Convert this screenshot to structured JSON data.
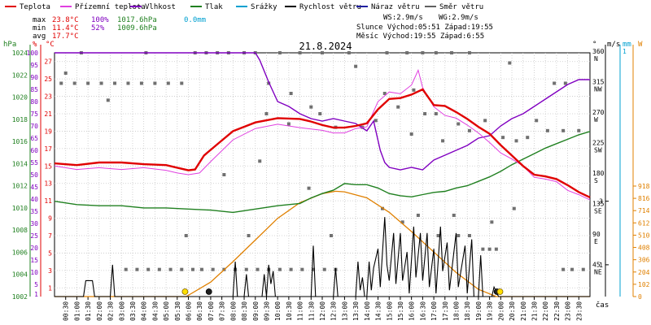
{
  "title": "21.8.2024",
  "legend": [
    {
      "label": "Teplota",
      "color": "#e00000"
    },
    {
      "label": "Přízemní teplota",
      "color": "#e040e0"
    },
    {
      "label": "Vlhkost",
      "color": "#8000c0"
    },
    {
      "label": "Tlak",
      "color": "#208020"
    },
    {
      "label": "Srážky",
      "color": "#00a0d0"
    },
    {
      "label": "Rychlost větru",
      "color": "#000000"
    },
    {
      "label": "Náraz větru",
      "color": "#2020a0"
    },
    {
      "label": "Směr větru",
      "color": "#606060"
    }
  ],
  "stats": {
    "max_label": "max",
    "max_temp": "23.8°C",
    "max_hum": "100%",
    "max_press": "1017.6hPa",
    "rain": "0.0mm",
    "min_label": "min",
    "min_temp": "11.4°C",
    "min_hum": "52%",
    "min_press": "1009.6hPa",
    "avg_label": "avg",
    "avg_temp": "17.7°C",
    "ws": "WS:2.9m/s",
    "wg": "WG:2.9m/s",
    "sun": "Slunce Východ:05:51  Západ:19:55",
    "moon": "Měsíc  Východ:19:55  Západ:6:55"
  },
  "axes": {
    "hpa_unit": "hPa",
    "pct_unit": "%",
    "c_unit": "°C",
    "deg_unit": "°",
    "ms_unit": "m/s",
    "mm_unit": "mm",
    "w_unit": "W",
    "hpa_ticks": [
      "1024",
      "1022",
      "1020",
      "1018",
      "1016",
      "1014",
      "1012",
      "1010",
      "1008",
      "1006",
      "1004",
      "1002"
    ],
    "pct_ticks": [
      "100",
      "95",
      "90",
      "85",
      "80",
      "75",
      "70",
      "65",
      "60",
      "55",
      "50",
      "45",
      "40",
      "35",
      "30",
      "25",
      "20",
      "15",
      "10",
      "5",
      "1"
    ],
    "c_ticks": [
      "27",
      "25",
      "23",
      "21",
      "19",
      "17",
      "15",
      "13",
      "11",
      "9",
      "7",
      "5",
      "3",
      "1"
    ],
    "dir_ticks": [
      {
        "deg": "360",
        "name": "N"
      },
      {
        "deg": "315",
        "name": "NW"
      },
      {
        "deg": "270",
        "name": "W"
      },
      {
        "deg": "225",
        "name": "SW"
      },
      {
        "deg": "180",
        "name": "S"
      },
      {
        "deg": "135",
        "name": "SE"
      },
      {
        "deg": "90",
        "name": "E"
      },
      {
        "deg": "45",
        "name": "NE"
      }
    ],
    "ms_ticks": [
      "3",
      "1"
    ],
    "mm_ticks": [
      "1"
    ],
    "w_ticks": [
      "918",
      "816",
      "714",
      "612",
      "510",
      "408",
      "306",
      "204",
      "102",
      "0"
    ],
    "x_label": "čas",
    "x_ticks": [
      "00:30",
      "01:00",
      "01:30",
      "02:00",
      "02:30",
      "03:00",
      "03:30",
      "04:00",
      "04:30",
      "05:00",
      "05:30",
      "06:00",
      "06:30",
      "07:00",
      "07:30",
      "08:00",
      "08:30",
      "09:00",
      "09:30",
      "10:00",
      "10:30",
      "11:00",
      "11:30",
      "12:00",
      "12:30",
      "13:00",
      "13:30",
      "14:00",
      "14:30",
      "15:00",
      "15:30",
      "16:00",
      "16:30",
      "17:00",
      "17:30",
      "18:00",
      "18:30",
      "19:00",
      "19:30",
      "20:00",
      "20:30",
      "21:00",
      "21:30",
      "22:00",
      "22:30",
      "23:00",
      "23:30"
    ]
  },
  "chart_data": {
    "type": "line",
    "x_unit": "hour",
    "temperature_c": [
      [
        0,
        15.3
      ],
      [
        1,
        15.1
      ],
      [
        2,
        15.4
      ],
      [
        3,
        15.4
      ],
      [
        4,
        15.2
      ],
      [
        5,
        15.1
      ],
      [
        5.5,
        14.8
      ],
      [
        6,
        14.5
      ],
      [
        6.3,
        14.6
      ],
      [
        6.7,
        16.2
      ],
      [
        7.3,
        17.5
      ],
      [
        8,
        19.0
      ],
      [
        9,
        20.0
      ],
      [
        10,
        20.5
      ],
      [
        11,
        20.4
      ],
      [
        11.5,
        20.1
      ],
      [
        12,
        19.7
      ],
      [
        12.5,
        19.4
      ],
      [
        13,
        19.4
      ],
      [
        13.5,
        19.6
      ],
      [
        14,
        19.9
      ],
      [
        14.5,
        21.5
      ],
      [
        15,
        22.7
      ],
      [
        15.5,
        22.8
      ],
      [
        16,
        23.2
      ],
      [
        16.5,
        23.8
      ],
      [
        17,
        22.0
      ],
      [
        17.5,
        21.9
      ],
      [
        18,
        21.2
      ],
      [
        18.5,
        20.4
      ],
      [
        19,
        19.5
      ],
      [
        19.5,
        18.7
      ],
      [
        20,
        17.4
      ],
      [
        20.5,
        16.2
      ],
      [
        21,
        15.0
      ],
      [
        21.5,
        14.0
      ],
      [
        22,
        13.8
      ],
      [
        22.5,
        13.5
      ],
      [
        23,
        12.8
      ],
      [
        23.5,
        12.0
      ],
      [
        24,
        11.4
      ]
    ],
    "ground_temp_c": [
      [
        0,
        15.0
      ],
      [
        1,
        14.6
      ],
      [
        2,
        14.8
      ],
      [
        3,
        14.6
      ],
      [
        4,
        14.8
      ],
      [
        5,
        14.5
      ],
      [
        5.5,
        14.2
      ],
      [
        6,
        14.0
      ],
      [
        6.5,
        14.2
      ],
      [
        7,
        15.5
      ],
      [
        8,
        18.0
      ],
      [
        9,
        19.3
      ],
      [
        10,
        19.8
      ],
      [
        11,
        19.4
      ],
      [
        12,
        19.1
      ],
      [
        12.5,
        18.8
      ],
      [
        13,
        18.8
      ],
      [
        13.5,
        19.3
      ],
      [
        14,
        19.5
      ],
      [
        14.5,
        22.4
      ],
      [
        15,
        23.5
      ],
      [
        15.5,
        23.3
      ],
      [
        16,
        24.3
      ],
      [
        16.3,
        26.0
      ],
      [
        16.5,
        24.0
      ],
      [
        17,
        21.8
      ],
      [
        17.5,
        20.8
      ],
      [
        18,
        20.5
      ],
      [
        18.5,
        19.7
      ],
      [
        19,
        18.8
      ],
      [
        19.5,
        17.7
      ],
      [
        20,
        16.5
      ],
      [
        20.5,
        15.8
      ],
      [
        21,
        15.0
      ],
      [
        21.5,
        13.7
      ],
      [
        22,
        13.5
      ],
      [
        22.5,
        13.2
      ],
      [
        23,
        12.2
      ],
      [
        23.5,
        11.7
      ],
      [
        24,
        11.1
      ]
    ],
    "humidity_pct": [
      [
        0,
        100
      ],
      [
        9,
        100
      ],
      [
        9.2,
        97
      ],
      [
        9.6,
        88
      ],
      [
        10,
        80
      ],
      [
        10.5,
        78
      ],
      [
        11,
        75
      ],
      [
        11.5,
        73
      ],
      [
        12,
        72
      ],
      [
        12.5,
        73
      ],
      [
        13,
        72
      ],
      [
        13.5,
        71
      ],
      [
        14,
        68
      ],
      [
        14.3,
        72
      ],
      [
        14.6,
        60
      ],
      [
        14.8,
        55
      ],
      [
        15,
        53
      ],
      [
        15.5,
        52
      ],
      [
        16,
        53
      ],
      [
        16.5,
        52
      ],
      [
        17,
        56
      ],
      [
        17.5,
        58
      ],
      [
        18,
        60
      ],
      [
        18.5,
        62
      ],
      [
        19,
        65
      ],
      [
        19.5,
        66
      ],
      [
        20,
        70
      ],
      [
        20.5,
        73
      ],
      [
        21,
        75
      ],
      [
        21.5,
        78
      ],
      [
        22,
        81
      ],
      [
        22.5,
        84
      ],
      [
        23,
        87
      ],
      [
        23.5,
        89
      ],
      [
        24,
        89
      ]
    ],
    "pressure_hpa": [
      [
        0,
        1010.6
      ],
      [
        1,
        1010.3
      ],
      [
        2,
        1010.2
      ],
      [
        3,
        1010.2
      ],
      [
        4,
        1010.0
      ],
      [
        5,
        1010.0
      ],
      [
        6,
        1009.9
      ],
      [
        7,
        1009.8
      ],
      [
        8,
        1009.6
      ],
      [
        9,
        1009.9
      ],
      [
        10,
        1010.2
      ],
      [
        11,
        1010.4
      ],
      [
        11.5,
        1010.9
      ],
      [
        12,
        1011.3
      ],
      [
        12.5,
        1011.6
      ],
      [
        13,
        1012.2
      ],
      [
        13.5,
        1012.1
      ],
      [
        14,
        1012.1
      ],
      [
        14.5,
        1011.8
      ],
      [
        15,
        1011.3
      ],
      [
        15.5,
        1011.1
      ],
      [
        16,
        1011.0
      ],
      [
        16.5,
        1011.2
      ],
      [
        17,
        1011.4
      ],
      [
        17.5,
        1011.5
      ],
      [
        18,
        1011.8
      ],
      [
        18.5,
        1012.0
      ],
      [
        19,
        1012.4
      ],
      [
        19.5,
        1012.8
      ],
      [
        20,
        1013.3
      ],
      [
        20.5,
        1013.9
      ],
      [
        21,
        1014.4
      ],
      [
        21.5,
        1014.9
      ],
      [
        22,
        1015.4
      ],
      [
        22.5,
        1015.8
      ],
      [
        23,
        1016.2
      ],
      [
        23.5,
        1016.6
      ],
      [
        24,
        1016.9
      ]
    ],
    "solar_w": [
      [
        0,
        0
      ],
      [
        5.9,
        0
      ],
      [
        7,
        120
      ],
      [
        8,
        290
      ],
      [
        9,
        470
      ],
      [
        10,
        650
      ],
      [
        11,
        780
      ],
      [
        12,
        855
      ],
      [
        12.6,
        875
      ],
      [
        13,
        870
      ],
      [
        14,
        820
      ],
      [
        15,
        700
      ],
      [
        16,
        540
      ],
      [
        17,
        370
      ],
      [
        18,
        200
      ],
      [
        19,
        60
      ],
      [
        19.8,
        0
      ],
      [
        24,
        0
      ]
    ],
    "wind_speed_ms": [
      [
        0,
        0
      ],
      [
        1.3,
        0
      ],
      [
        1.4,
        0.5
      ],
      [
        1.7,
        0.5
      ],
      [
        1.8,
        0
      ],
      [
        2.5,
        0
      ],
      [
        2.6,
        1
      ],
      [
        2.7,
        0
      ],
      [
        8,
        0
      ],
      [
        8.1,
        1.1
      ],
      [
        8.2,
        0
      ],
      [
        8.5,
        0
      ],
      [
        8.6,
        0.7
      ],
      [
        8.7,
        0
      ],
      [
        9.3,
        0
      ],
      [
        9.4,
        0.7
      ],
      [
        9.5,
        0
      ],
      [
        9.6,
        1.0
      ],
      [
        9.7,
        0.4
      ],
      [
        9.8,
        0.8
      ],
      [
        9.9,
        0
      ],
      [
        11.5,
        0
      ],
      [
        11.6,
        1.6
      ],
      [
        11.7,
        0
      ],
      [
        12.5,
        0
      ],
      [
        12.6,
        0.9
      ],
      [
        12.7,
        0
      ],
      [
        13.5,
        0
      ],
      [
        13.6,
        1.1
      ],
      [
        13.7,
        0.2
      ],
      [
        13.8,
        0.6
      ],
      [
        13.9,
        0
      ],
      [
        14,
        0
      ],
      [
        14.1,
        1.1
      ],
      [
        14.2,
        0.2
      ],
      [
        14.3,
        0.9
      ],
      [
        14.5,
        1.5
      ],
      [
        14.6,
        0.3
      ],
      [
        14.8,
        2.5
      ],
      [
        14.9,
        1.0
      ],
      [
        15,
        0.5
      ],
      [
        15.2,
        2.0
      ],
      [
        15.3,
        0.4
      ],
      [
        15.5,
        2.0
      ],
      [
        15.6,
        0.5
      ],
      [
        15.8,
        1.4
      ],
      [
        15.9,
        0.1
      ],
      [
        16.1,
        2.2
      ],
      [
        16.2,
        0.6
      ],
      [
        16.4,
        2.0
      ],
      [
        16.5,
        0.5
      ],
      [
        16.7,
        2.0
      ],
      [
        16.8,
        0.3
      ],
      [
        17,
        1.5
      ],
      [
        17.1,
        0.1
      ],
      [
        17.3,
        2.2
      ],
      [
        17.4,
        0.8
      ],
      [
        17.6,
        1.7
      ],
      [
        17.7,
        0.2
      ],
      [
        18,
        2.0
      ],
      [
        18.1,
        0.3
      ],
      [
        18.4,
        1.6
      ],
      [
        18.5,
        0.1
      ],
      [
        18.7,
        1.8
      ],
      [
        18.8,
        0
      ],
      [
        19,
        0
      ],
      [
        19.1,
        1.3
      ],
      [
        19.2,
        0
      ],
      [
        19.6,
        0
      ],
      [
        19.7,
        0.3
      ],
      [
        19.9,
        0
      ],
      [
        24,
        0
      ]
    ],
    "wind_gust_ms": [],
    "rain_mm": [],
    "wind_dir_deg": [
      [
        0.3,
        315
      ],
      [
        0.9,
        315
      ],
      [
        1.5,
        315
      ],
      [
        2.1,
        315
      ],
      [
        2.7,
        315
      ],
      [
        3.3,
        315
      ],
      [
        3.9,
        315
      ],
      [
        4.5,
        315
      ],
      [
        5.1,
        315
      ],
      [
        5.7,
        315
      ],
      [
        0.5,
        330
      ],
      [
        2.4,
        290
      ],
      [
        1.2,
        360
      ],
      [
        4.1,
        360
      ],
      [
        6.3,
        360
      ],
      [
        6.8,
        360
      ],
      [
        7.3,
        360
      ],
      [
        7.8,
        360
      ],
      [
        8.5,
        360
      ],
      [
        9,
        360
      ],
      [
        10.1,
        360
      ],
      [
        11,
        360
      ],
      [
        12,
        360
      ],
      [
        13.2,
        360
      ],
      [
        14.9,
        360
      ],
      [
        15.8,
        360
      ],
      [
        16.5,
        360
      ],
      [
        17.1,
        360
      ],
      [
        17.8,
        360
      ],
      [
        18.6,
        360
      ],
      [
        9.6,
        315
      ],
      [
        10.6,
        300
      ],
      [
        11.5,
        280
      ],
      [
        11.9,
        270
      ],
      [
        12.6,
        250
      ],
      [
        13.8,
        250
      ],
      [
        14.8,
        300
      ],
      [
        15.4,
        280
      ],
      [
        16.1,
        305
      ],
      [
        16.6,
        270
      ],
      [
        17.1,
        270
      ],
      [
        18.1,
        255
      ],
      [
        18.6,
        245
      ],
      [
        19.3,
        260
      ],
      [
        20.1,
        235
      ],
      [
        20.7,
        230
      ],
      [
        21.2,
        235
      ],
      [
        22.1,
        245
      ],
      [
        22.8,
        245
      ],
      [
        23.5,
        245
      ],
      [
        22.4,
        315
      ],
      [
        22.9,
        315
      ],
      [
        9.5,
        270
      ],
      [
        10.5,
        255
      ],
      [
        13.5,
        340
      ],
      [
        14.4,
        260
      ],
      [
        20.4,
        345
      ],
      [
        21.6,
        260
      ],
      [
        11.4,
        160
      ],
      [
        12.4,
        90
      ],
      [
        7.6,
        180
      ],
      [
        9.2,
        200
      ],
      [
        16,
        240
      ],
      [
        17.4,
        230
      ],
      [
        19.5,
        70
      ],
      [
        20.6,
        130
      ],
      [
        3.2,
        40
      ],
      [
        3.7,
        40
      ],
      [
        4.2,
        40
      ],
      [
        4.7,
        40
      ],
      [
        5.2,
        40
      ],
      [
        5.7,
        40
      ],
      [
        6.2,
        40
      ],
      [
        6.6,
        40
      ],
      [
        7.1,
        40
      ],
      [
        7.6,
        40
      ],
      [
        8.1,
        40
      ],
      [
        8.6,
        40
      ],
      [
        9.1,
        40
      ],
      [
        9.6,
        40
      ],
      [
        10.1,
        40
      ],
      [
        10.6,
        40
      ],
      [
        11.1,
        40
      ],
      [
        11.6,
        40
      ],
      [
        12.1,
        40
      ],
      [
        12.6,
        40
      ],
      [
        17.2,
        90
      ],
      [
        18.1,
        90
      ],
      [
        18.6,
        90
      ],
      [
        19.2,
        70
      ],
      [
        19.8,
        70
      ],
      [
        22.8,
        40
      ],
      [
        23.2,
        40
      ],
      [
        23.7,
        40
      ],
      [
        5.9,
        90
      ],
      [
        8.7,
        90
      ],
      [
        14.7,
        130
      ],
      [
        15.6,
        110
      ],
      [
        16.3,
        120
      ],
      [
        17.9,
        120
      ],
      [
        19.6,
        110
      ]
    ]
  }
}
